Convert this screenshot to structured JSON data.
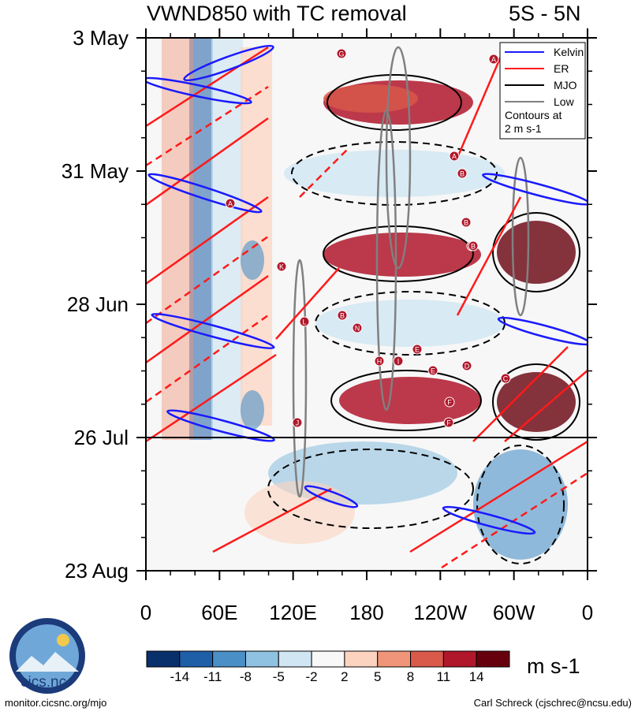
{
  "title_left": "VWND850 with TC removal",
  "title_right": "5S - 5N",
  "chart_data": {
    "type": "heatmap",
    "variable": "VWND850",
    "y_ticks": [
      "3 May",
      "31 May",
      "28 Jun",
      "26 Jul",
      "23 Aug"
    ],
    "x_ticks": [
      "0",
      "60E",
      "120E",
      "180",
      "120W",
      "60W",
      "0"
    ],
    "legend": {
      "entries": [
        {
          "name": "Kelvin",
          "color": "#1a1aff"
        },
        {
          "name": "ER",
          "color": "#ff1a1a"
        },
        {
          "name": "MJO",
          "color": "#000000"
        },
        {
          "name": "Low",
          "color": "#808080"
        }
      ],
      "note": "Contours at 2 m s-1",
      "placement": "top-right"
    },
    "colorbar": {
      "labels": [
        "-14",
        "-11",
        "-8",
        "-5",
        "-2",
        "2",
        "5",
        "8",
        "11",
        "14"
      ],
      "colors": [
        "#08306b",
        "#1f5fa8",
        "#4a8fc6",
        "#8fc1e0",
        "#d0e6f2",
        "#f8f8f8",
        "#fcd3bf",
        "#f0957a",
        "#d9594a",
        "#b0172b",
        "#67000d"
      ],
      "units": "m s-1"
    },
    "event_markers": [
      "G",
      "A",
      "B",
      "A",
      "A",
      "B",
      "C",
      "B",
      "K",
      "L",
      "B",
      "N",
      "H",
      "I",
      "E",
      "E",
      "D",
      "C",
      "J",
      "F",
      "F"
    ]
  },
  "footer_left": "monitor.cicsnc.org/mjo",
  "footer_right": "Carl Schreck (cjschrec@ncsu.edu)",
  "logo_text": "cics.nc"
}
